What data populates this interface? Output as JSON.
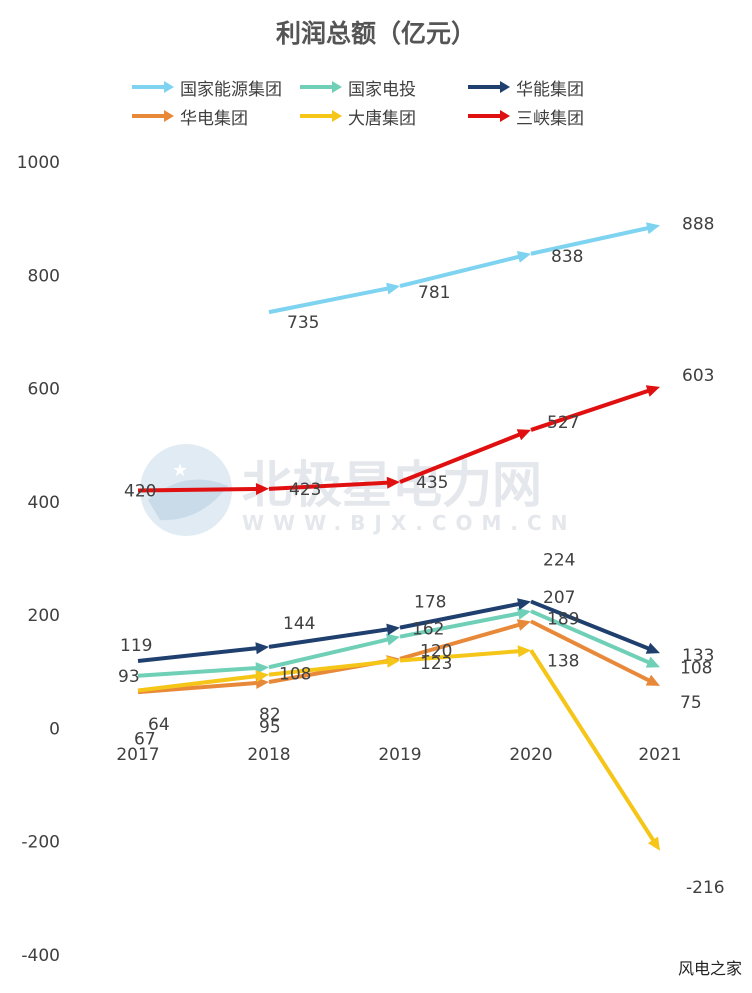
{
  "title": "利润总额（亿元）",
  "footer": "风电之家",
  "watermark": {
    "main": "北极星电力网",
    "sub": "WWW.BJX.COM.CN"
  },
  "chart_data": {
    "type": "line",
    "title": "利润总额（亿元）",
    "xlabel": "",
    "ylabel": "",
    "categories": [
      "2017",
      "2018",
      "2019",
      "2020",
      "2021"
    ],
    "y_ticks": [
      "1000",
      "800",
      "600",
      "400",
      "200",
      "0",
      "-200",
      "-400"
    ],
    "ylim": [
      -400,
      1000
    ],
    "grid": false,
    "legend_position": "top",
    "series": [
      {
        "name": "国家能源集团",
        "color": "#7dd3f0",
        "values": [
          null,
          735,
          781,
          838,
          888
        ],
        "labels": [
          "",
          "735",
          "781",
          "838",
          "888"
        ]
      },
      {
        "name": "国家电投",
        "color": "#6fcfb7",
        "values": [
          93,
          108,
          162,
          207,
          108
        ],
        "labels": [
          "93",
          "108",
          "162",
          "207",
          "108"
        ]
      },
      {
        "name": "华能集团",
        "color": "#1f3f6e",
        "values": [
          119,
          144,
          178,
          224,
          133
        ],
        "labels": [
          "119",
          "144",
          "178",
          "224",
          "133"
        ]
      },
      {
        "name": "华电集团",
        "color": "#e8893a",
        "values": [
          64,
          82,
          123,
          189,
          75
        ],
        "labels": [
          "64",
          "82",
          "123",
          "189",
          "75"
        ]
      },
      {
        "name": "大唐集团",
        "color": "#f5c518",
        "values": [
          67,
          95,
          120,
          138,
          -216
        ],
        "labels": [
          "67",
          "95",
          "120",
          "138",
          "-216"
        ]
      },
      {
        "name": "三峡集团",
        "color": "#e01010",
        "values": [
          420,
          423,
          435,
          527,
          603
        ],
        "labels": [
          "420",
          "423",
          "435",
          "527",
          "603"
        ]
      }
    ]
  }
}
